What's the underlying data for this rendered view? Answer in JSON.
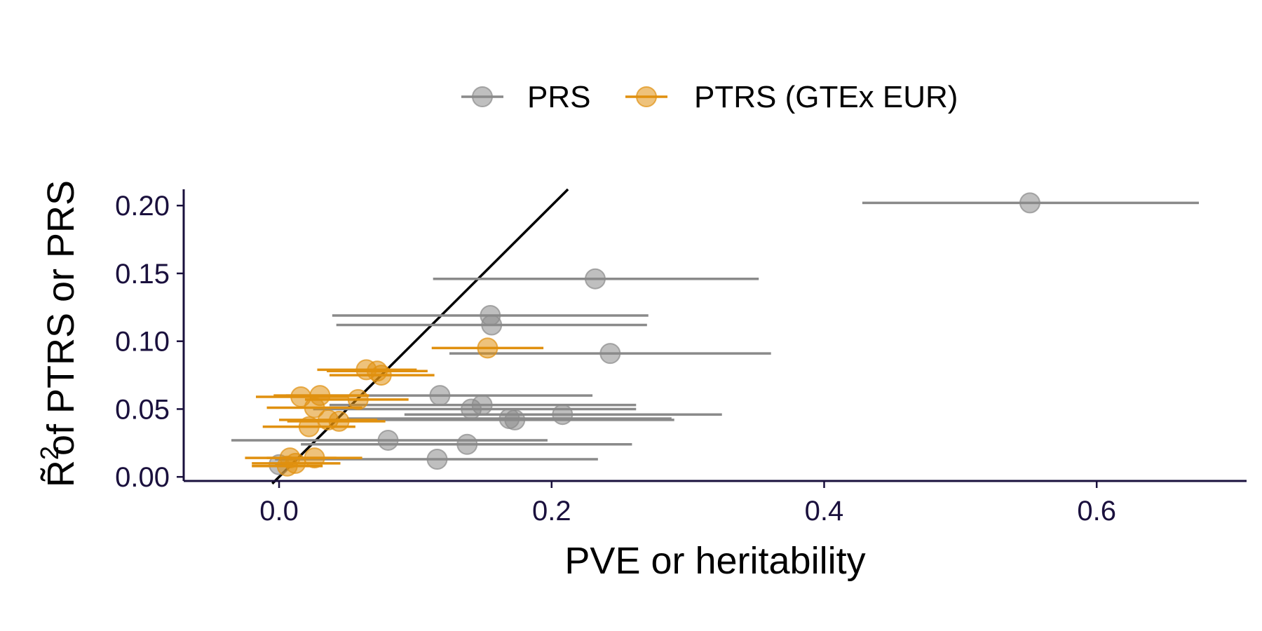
{
  "chart_data": {
    "type": "scatter",
    "xlabel": "PVE or heritability",
    "ylabel_symbol": "R̃",
    "ylabel_sup": "2",
    "ylabel": "of PTRS or PRS",
    "xlim": [
      -0.07,
      0.71
    ],
    "ylim": [
      -0.003,
      0.212
    ],
    "xticks": [
      0.0,
      0.2,
      0.4,
      0.6
    ],
    "xtick_labels": [
      "0.0",
      "0.2",
      "0.4",
      "0.6"
    ],
    "yticks": [
      0.0,
      0.05,
      0.1,
      0.15,
      0.2
    ],
    "ytick_labels": [
      "0.00",
      "0.05",
      "0.10",
      "0.15",
      "0.20"
    ],
    "grid": false,
    "legend_position": "top",
    "reference_line": {
      "slope": 1,
      "intercept": 0
    },
    "series": [
      {
        "name": "PRS",
        "color": "#8a8a8a",
        "points": [
          {
            "x": 0.551,
            "y": 0.202,
            "xmin": 0.428,
            "xmax": 0.675
          },
          {
            "x": 0.232,
            "y": 0.146,
            "xmin": 0.113,
            "xmax": 0.352
          },
          {
            "x": 0.155,
            "y": 0.119,
            "xmin": 0.039,
            "xmax": 0.271
          },
          {
            "x": 0.156,
            "y": 0.112,
            "xmin": 0.042,
            "xmax": 0.27
          },
          {
            "x": 0.243,
            "y": 0.091,
            "xmin": 0.125,
            "xmax": 0.361
          },
          {
            "x": 0.118,
            "y": 0.06,
            "xmin": 0.005,
            "xmax": 0.23
          },
          {
            "x": 0.149,
            "y": 0.053,
            "xmin": 0.037,
            "xmax": 0.262
          },
          {
            "x": 0.141,
            "y": 0.05,
            "xmin": 0.025,
            "xmax": 0.262
          },
          {
            "x": 0.208,
            "y": 0.046,
            "xmin": 0.092,
            "xmax": 0.325
          },
          {
            "x": 0.173,
            "y": 0.042,
            "xmin": 0.056,
            "xmax": 0.29
          },
          {
            "x": 0.169,
            "y": 0.043,
            "xmin": 0.05,
            "xmax": 0.288
          },
          {
            "x": 0.08,
            "y": 0.027,
            "xmin": -0.035,
            "xmax": 0.197
          },
          {
            "x": 0.138,
            "y": 0.024,
            "xmin": 0.016,
            "xmax": 0.259
          },
          {
            "x": 0.116,
            "y": 0.013,
            "xmin": -0.003,
            "xmax": 0.234
          },
          {
            "x": 0.0,
            "y": 0.009,
            "xmin": -0.003,
            "xmax": 0.01
          }
        ]
      },
      {
        "name": "PTRS (GTEx EUR)",
        "color": "#e0900f",
        "points": [
          {
            "x": 0.153,
            "y": 0.095,
            "xmin": 0.112,
            "xmax": 0.194
          },
          {
            "x": 0.064,
            "y": 0.079,
            "xmin": 0.028,
            "xmax": 0.101
          },
          {
            "x": 0.072,
            "y": 0.078,
            "xmin": 0.035,
            "xmax": 0.109
          },
          {
            "x": 0.075,
            "y": 0.075,
            "xmin": 0.037,
            "xmax": 0.114
          },
          {
            "x": 0.016,
            "y": 0.059,
            "xmin": -0.017,
            "xmax": 0.051
          },
          {
            "x": 0.03,
            "y": 0.06,
            "xmin": -0.004,
            "xmax": 0.066
          },
          {
            "x": 0.058,
            "y": 0.057,
            "xmin": 0.019,
            "xmax": 0.095
          },
          {
            "x": 0.026,
            "y": 0.051,
            "xmin": -0.009,
            "xmax": 0.061
          },
          {
            "x": 0.036,
            "y": 0.042,
            "xmin": 0.0,
            "xmax": 0.072
          },
          {
            "x": 0.044,
            "y": 0.041,
            "xmin": 0.006,
            "xmax": 0.078
          },
          {
            "x": 0.022,
            "y": 0.037,
            "xmin": -0.012,
            "xmax": 0.056
          },
          {
            "x": 0.008,
            "y": 0.014,
            "xmin": -0.025,
            "xmax": 0.042
          },
          {
            "x": 0.026,
            "y": 0.014,
            "xmin": -0.009,
            "xmax": 0.061
          },
          {
            "x": 0.012,
            "y": 0.01,
            "xmin": -0.02,
            "xmax": 0.045
          },
          {
            "x": 0.006,
            "y": 0.008,
            "xmin": -0.02,
            "xmax": 0.032
          }
        ]
      }
    ]
  }
}
